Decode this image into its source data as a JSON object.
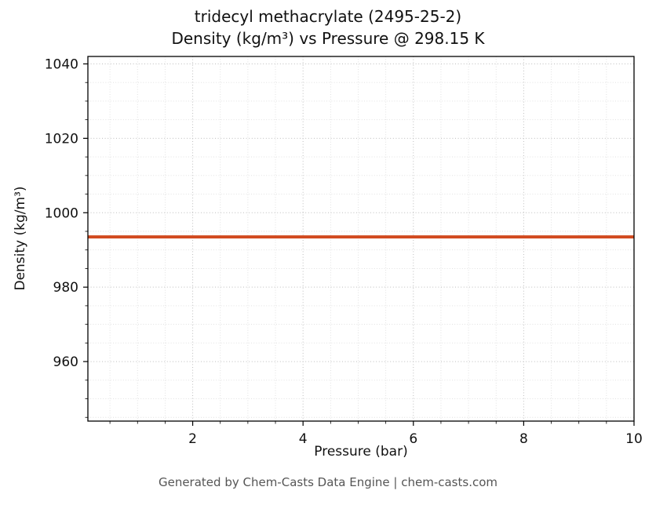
{
  "figure": {
    "title_line1": "tridecyl methacrylate (2495-25-2)",
    "title_line2": "Density (kg/m³) vs Pressure @ 298.15 K",
    "xlabel": "Pressure (bar)",
    "ylabel": "Density (kg/m³)",
    "footer": "Generated by Chem-Casts Data Engine | chem-casts.com"
  },
  "chart_data": {
    "type": "line",
    "title": "tridecyl methacrylate (2495-25-2) — Density (kg/m³) vs Pressure @ 298.15 K",
    "xlabel": "Pressure (bar)",
    "ylabel": "Density (kg/m³)",
    "xlim": [
      0.1,
      10
    ],
    "ylim": [
      944,
      1042
    ],
    "xticks": [
      2,
      4,
      6,
      8,
      10
    ],
    "yticks": [
      960,
      980,
      1000,
      1020,
      1040
    ],
    "x_minor_step": 0.5,
    "y_minor_step": 5,
    "grid": "major and minor gridlines, dotted, shown",
    "legend": "none",
    "series": [
      {
        "name": "Density @ 298.15 K",
        "color": "#d1491e",
        "linewidth": 4,
        "x": [
          0.1,
          1,
          2,
          3,
          4,
          5,
          6,
          7,
          8,
          9,
          10
        ],
        "y": [
          993.5,
          993.5,
          993.5,
          993.5,
          993.5,
          993.5,
          993.5,
          993.5,
          993.5,
          993.5,
          993.5
        ]
      }
    ],
    "styles": {
      "major_grid_color": "#bdbdbd",
      "minor_grid_color": "#dedede",
      "spine_color": "#000000",
      "tick_color": "#000000",
      "footer_color": "#555555"
    }
  }
}
